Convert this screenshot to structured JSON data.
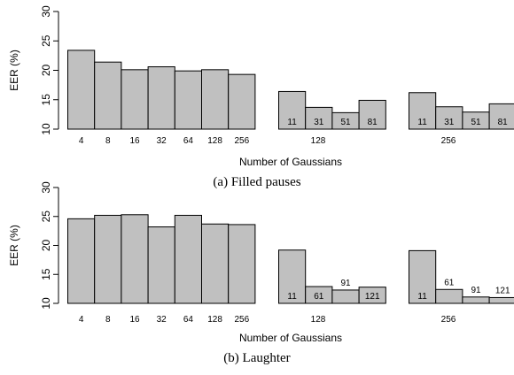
{
  "chart_data": [
    {
      "type": "bar",
      "caption": "(a) Filled pauses",
      "ylabel": "EER (%)",
      "xlabel": "Number of Gaussians",
      "ylim": [
        10,
        30
      ],
      "yticks": [
        10,
        15,
        20,
        25,
        30
      ],
      "groups": [
        {
          "name": "",
          "categories": [
            "4",
            "8",
            "16",
            "32",
            "64",
            "128",
            "256"
          ],
          "values": [
            23.4,
            21.4,
            20.1,
            20.6,
            19.9,
            20.1,
            19.3
          ],
          "labels_inside": false
        },
        {
          "name": "128",
          "categories": [
            "11",
            "31",
            "51",
            "81"
          ],
          "values": [
            16.4,
            13.7,
            12.8,
            14.9
          ],
          "labels_inside": true
        },
        {
          "name": "256",
          "categories": [
            "11",
            "31",
            "51",
            "81"
          ],
          "values": [
            16.2,
            13.8,
            12.9,
            14.3
          ],
          "labels_inside": true
        }
      ]
    },
    {
      "type": "bar",
      "caption": "(b) Laughter",
      "ylabel": "EER (%)",
      "xlabel": "Number of Gaussians",
      "ylim": [
        10,
        30
      ],
      "yticks": [
        10,
        15,
        20,
        25,
        30
      ],
      "groups": [
        {
          "name": "",
          "categories": [
            "4",
            "8",
            "16",
            "32",
            "64",
            "128",
            "256"
          ],
          "values": [
            24.6,
            25.2,
            25.3,
            23.2,
            25.2,
            23.7,
            23.6
          ],
          "labels_inside": false
        },
        {
          "name": "128",
          "categories": [
            "11",
            "61",
            "91",
            "121"
          ],
          "values": [
            19.2,
            12.9,
            12.3,
            12.8
          ],
          "labels_inside": true
        },
        {
          "name": "256",
          "categories": [
            "11",
            "61",
            "91",
            "121"
          ],
          "values": [
            19.1,
            12.4,
            11.1,
            11.0
          ],
          "labels_inside": true
        }
      ]
    }
  ]
}
